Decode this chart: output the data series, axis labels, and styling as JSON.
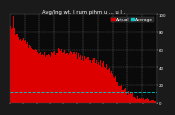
{
  "title": "Avg/Ing wt. I rum pihm u ... u I .",
  "bg_color": "#1a1a1a",
  "plot_bg_color": "#0a0a0a",
  "bar_color": "#dd0000",
  "avg_line_color": "#00cccc",
  "grid_color": "#ffffff",
  "legend_actual_color": "#dd0000",
  "legend_actual_label": "Actual",
  "legend_avg_color": "#00cccc",
  "legend_avg_label": "Average",
  "ylim": [
    0,
    100
  ],
  "num_bars": 200,
  "avg_value": 12,
  "title_fontsize": 3.8,
  "tick_fontsize": 2.8,
  "legend_fontsize": 3.2
}
